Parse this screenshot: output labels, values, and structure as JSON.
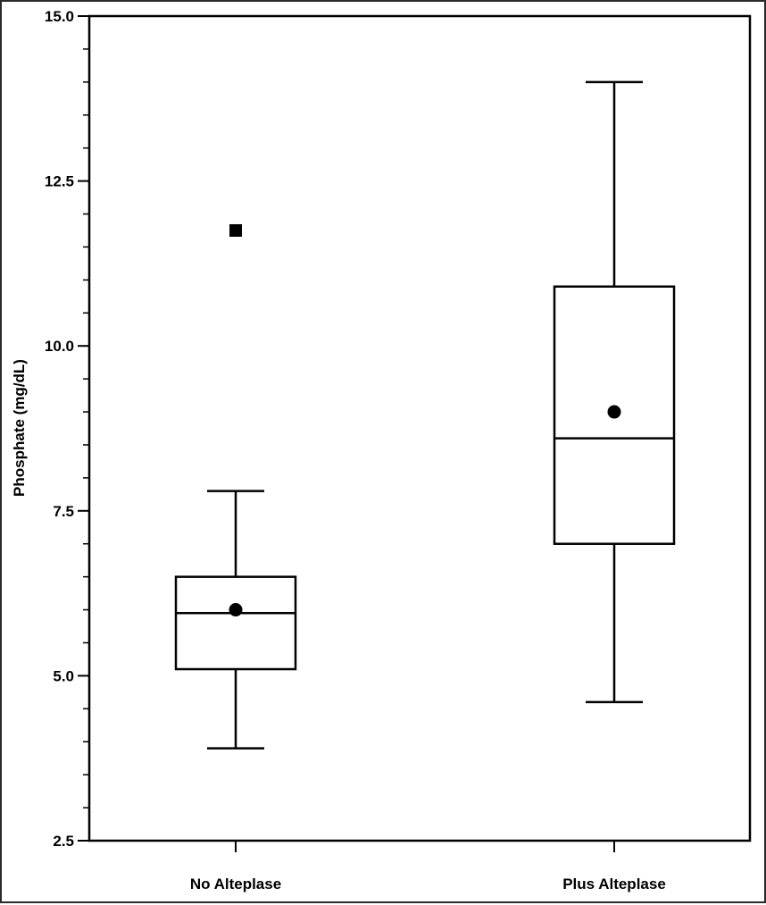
{
  "chart_data": {
    "type": "box",
    "title": "",
    "xlabel": "",
    "ylabel": "Phosphate (mg/dL)",
    "ylim": [
      2.5,
      15.0
    ],
    "y_major_ticks": [
      2.5,
      5.0,
      7.5,
      10.0,
      12.5,
      15.0
    ],
    "y_tick_labels": [
      "2.5",
      "5.0",
      "7.5",
      "10.0",
      "12.5",
      "15.0"
    ],
    "y_minor_step": 0.5,
    "categories": [
      "No Alteplase",
      "Plus Alteplase"
    ],
    "boxes": [
      {
        "category": "No Alteplase",
        "whisker_low": 3.9,
        "q1": 5.1,
        "median": 5.95,
        "q3": 6.5,
        "whisker_high": 7.8,
        "mean": 6.0,
        "outliers": [
          11.75
        ]
      },
      {
        "category": "Plus Alteplase",
        "whisker_low": 4.6,
        "q1": 7.0,
        "median": 8.6,
        "q3": 10.9,
        "whisker_high": 14.0,
        "mean": 9.0,
        "outliers": []
      }
    ],
    "grid": false,
    "legend": "none",
    "colors": {
      "line": "#000000",
      "background": "#ffffff",
      "frame": "#2a2a2a"
    }
  }
}
